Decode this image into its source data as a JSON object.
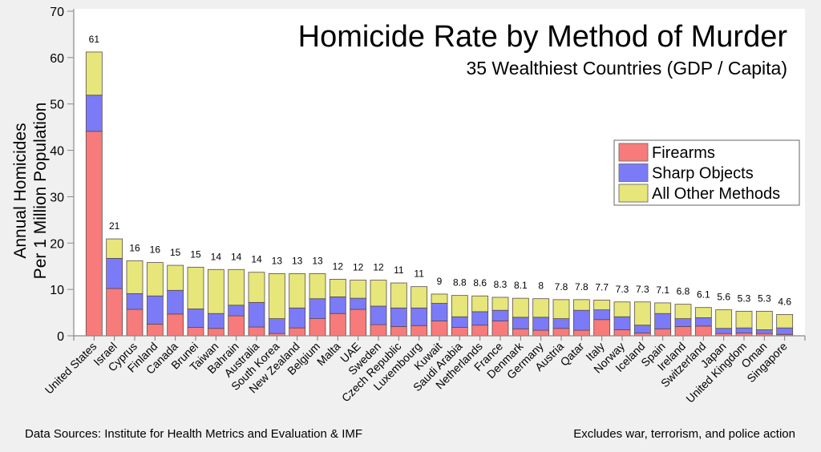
{
  "chart_data": {
    "type": "bar",
    "stacked": true,
    "title": "Homicide Rate by Method of Murder",
    "subtitle": "35 Wealthiest Countries (GDP / Capita)",
    "xlabel": "",
    "ylabel": [
      "Annual Homicides",
      "Per 1 Million Population"
    ],
    "ylim": [
      0,
      70
    ],
    "yticks": [
      0,
      10,
      20,
      30,
      40,
      50,
      60,
      70
    ],
    "grid": false,
    "legend_position": "right",
    "categories": [
      "United States",
      "Israel",
      "Cyprus",
      "Finland",
      "Canada",
      "Brunei",
      "Taiwan",
      "Bahrain",
      "Australia",
      "South Korea",
      "New Zealand",
      "Belgium",
      "Malta",
      "UAE",
      "Sweden",
      "Czech Republic",
      "Luxembourg",
      "Kuwait",
      "Saudi Arabia",
      "Netherlands",
      "France",
      "Denmark",
      "Germany",
      "Austria",
      "Qatar",
      "Italy",
      "Norway",
      "Iceland",
      "Spain",
      "Ireland",
      "Switzerland",
      "Japan",
      "United Kingdom",
      "Oman",
      "Singapore"
    ],
    "series": [
      {
        "name": "Firearms",
        "color": "#f77b7b",
        "values": [
          44.1,
          10.2,
          5.7,
          2.5,
          4.7,
          1.8,
          1.6,
          4.3,
          1.9,
          0.5,
          1.7,
          3.7,
          4.8,
          5.7,
          2.4,
          2.0,
          2.2,
          3.2,
          1.8,
          2.3,
          3.2,
          1.5,
          1.2,
          1.6,
          1.2,
          3.5,
          1.3,
          0.6,
          1.5,
          2.0,
          2.1,
          0.5,
          0.6,
          0.5,
          0.3
        ]
      },
      {
        "name": "Sharp Objects",
        "color": "#7b7bf7",
        "values": [
          7.8,
          6.5,
          3.4,
          6.1,
          5.1,
          4.0,
          3.2,
          2.3,
          5.3,
          3.2,
          4.3,
          4.3,
          3.6,
          2.4,
          4.0,
          4.0,
          3.8,
          3.8,
          2.3,
          2.9,
          2.3,
          2.5,
          2.8,
          2.1,
          4.3,
          2.1,
          2.8,
          1.7,
          3.3,
          1.7,
          1.8,
          1.1,
          1.1,
          0.8,
          1.4
        ]
      },
      {
        "name": "All Other Methods",
        "color": "#e6e67a",
        "values": [
          9.3,
          4.2,
          7.1,
          7.2,
          5.4,
          9.0,
          9.5,
          7.7,
          6.5,
          9.7,
          7.4,
          5.4,
          3.8,
          3.9,
          5.6,
          5.4,
          4.6,
          2.0,
          4.6,
          3.4,
          2.8,
          4.1,
          4.0,
          4.1,
          2.3,
          2.1,
          3.2,
          5.0,
          2.3,
          3.1,
          2.2,
          4.0,
          3.6,
          4.0,
          2.9
        ]
      }
    ],
    "totals_labels": [
      "61",
      "21",
      "16",
      "16",
      "15",
      "15",
      "14",
      "14",
      "14",
      "13",
      "13",
      "13",
      "12",
      "12",
      "12",
      "11",
      "11",
      "9",
      "8.8",
      "8.6",
      "8.3",
      "8.1",
      "8",
      "7.8",
      "7.8",
      "7.7",
      "7.3",
      "7.3",
      "7.1",
      "6.8",
      "6.1",
      "5.6",
      "5.3",
      "5.3",
      "4.6"
    ]
  },
  "footer": {
    "source": "Data Sources: Institute for Health Metrics and Evaluation & IMF",
    "note": "Excludes war, terrorism, and police action"
  }
}
